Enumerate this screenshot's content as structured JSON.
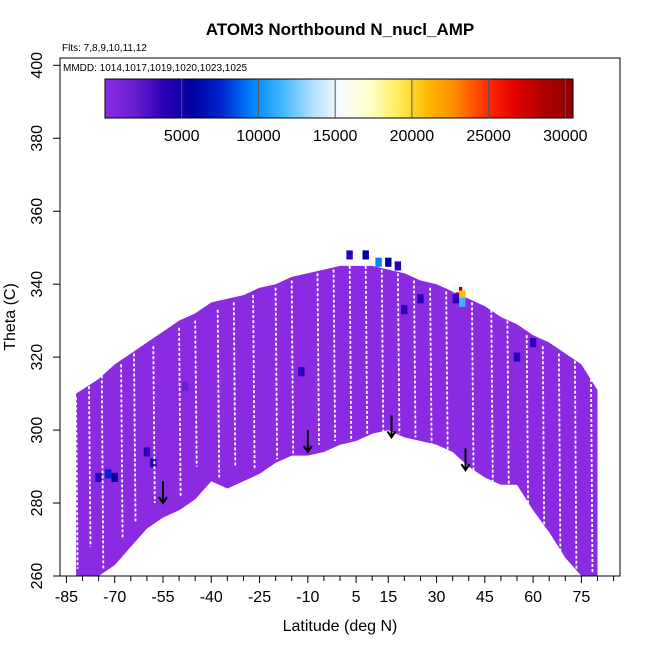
{
  "chart_data": {
    "type": "heatmap",
    "title": "ATOM3 Northbound N_nucl_AMP",
    "subtitle_flights": "Flts: 7,8,9,10,11,12",
    "subtitle_dates": "MMDD: 1014,1017,1019,1020,1023,1025",
    "xlabel": "Latitude (deg N)",
    "ylabel": "Theta (C)",
    "xlim": [
      -87,
      87
    ],
    "ylim": [
      260,
      402
    ],
    "x_ticks": [
      -85,
      -70,
      -55,
      -40,
      -25,
      -10,
      5,
      15,
      30,
      45,
      60,
      75
    ],
    "x_minor_ticks": [
      -80,
      -75,
      -65,
      -60,
      -50,
      -45,
      -35,
      -30,
      -20,
      -15,
      -5,
      0,
      10,
      20,
      25,
      35,
      40,
      50,
      55,
      65,
      70,
      80,
      85
    ],
    "y_ticks": [
      260,
      280,
      300,
      320,
      340,
      360,
      380,
      400
    ],
    "colorbar": {
      "range": [
        0,
        30500
      ],
      "ticks": [
        5000,
        10000,
        15000,
        20000,
        25000,
        30000
      ],
      "colors": [
        "#8a2be2",
        "#6a1fd0",
        "#2c00b8",
        "#0000a0",
        "#0026d4",
        "#0080ff",
        "#38b6ff",
        "#a8dcff",
        "#f5faff",
        "#ffffd0",
        "#ffee60",
        "#ffbb00",
        "#ff8800",
        "#ff3000",
        "#e60000",
        "#b00000",
        "#8b0000"
      ]
    },
    "envelope_top": [
      [
        -82,
        310
      ],
      [
        -75,
        314
      ],
      [
        -70,
        318
      ],
      [
        -65,
        321
      ],
      [
        -60,
        324
      ],
      [
        -55,
        327
      ],
      [
        -50,
        330
      ],
      [
        -45,
        332
      ],
      [
        -40,
        335
      ],
      [
        -35,
        336
      ],
      [
        -30,
        337
      ],
      [
        -25,
        339
      ],
      [
        -20,
        340
      ],
      [
        -15,
        342
      ],
      [
        -10,
        343
      ],
      [
        -5,
        344
      ],
      [
        0,
        345
      ],
      [
        5,
        345
      ],
      [
        10,
        345
      ],
      [
        15,
        344
      ],
      [
        20,
        343
      ],
      [
        25,
        341
      ],
      [
        30,
        340
      ],
      [
        35,
        338
      ],
      [
        40,
        336
      ],
      [
        45,
        334
      ],
      [
        50,
        331
      ],
      [
        55,
        329
      ],
      [
        60,
        326
      ],
      [
        65,
        324
      ],
      [
        70,
        321
      ],
      [
        75,
        318
      ],
      [
        80,
        311
      ]
    ],
    "envelope_bottom": [
      [
        80,
        260
      ],
      [
        75,
        260
      ],
      [
        70,
        265
      ],
      [
        65,
        272
      ],
      [
        60,
        278
      ],
      [
        55,
        285
      ],
      [
        50,
        285
      ],
      [
        45,
        287
      ],
      [
        40,
        290
      ],
      [
        35,
        294
      ],
      [
        30,
        296
      ],
      [
        25,
        297
      ],
      [
        20,
        298
      ],
      [
        15,
        300
      ],
      [
        10,
        299
      ],
      [
        5,
        297
      ],
      [
        0,
        296
      ],
      [
        -5,
        294
      ],
      [
        -10,
        293
      ],
      [
        -15,
        293
      ],
      [
        -20,
        291
      ],
      [
        -25,
        288
      ],
      [
        -30,
        286
      ],
      [
        -35,
        284
      ],
      [
        -40,
        286
      ],
      [
        -45,
        281
      ],
      [
        -50,
        278
      ],
      [
        -55,
        276
      ],
      [
        -60,
        273
      ],
      [
        -65,
        268
      ],
      [
        -70,
        263
      ],
      [
        -75,
        260
      ],
      [
        -80,
        260
      ],
      [
        -82,
        260
      ]
    ],
    "hotspots": [
      {
        "lat": 37,
        "theta": 338,
        "value": 28000
      },
      {
        "lat": 38,
        "theta": 337,
        "value": 20000
      },
      {
        "lat": 36,
        "theta": 339,
        "value": 15000
      },
      {
        "lat": 38,
        "theta": 335,
        "value": 11000
      },
      {
        "lat": 36,
        "theta": 336,
        "value": 4000
      },
      {
        "lat": 12,
        "theta": 346,
        "value": 9000
      },
      {
        "lat": 15,
        "theta": 346,
        "value": 7000
      },
      {
        "lat": 18,
        "theta": 345,
        "value": 4000
      },
      {
        "lat": 8,
        "theta": 348,
        "value": 5500
      },
      {
        "lat": 3,
        "theta": 348,
        "value": 4500
      },
      {
        "lat": -60,
        "theta": 294,
        "value": 5000
      },
      {
        "lat": -58,
        "theta": 291,
        "value": 4500
      },
      {
        "lat": -72,
        "theta": 288,
        "value": 8000
      },
      {
        "lat": -70,
        "theta": 287,
        "value": 5500
      },
      {
        "lat": -75,
        "theta": 287,
        "value": 4000
      },
      {
        "lat": 55,
        "theta": 320,
        "value": 5000
      },
      {
        "lat": 60,
        "theta": 324,
        "value": 4500
      },
      {
        "lat": 20,
        "theta": 333,
        "value": 4500
      },
      {
        "lat": 25,
        "theta": 336,
        "value": 4500
      },
      {
        "lat": -12,
        "theta": 316,
        "value": 3800
      },
      {
        "lat": -48,
        "theta": 312,
        "value": 3500
      }
    ],
    "arrows": [
      {
        "lat": -55,
        "theta_start": 286,
        "theta_end": 280
      },
      {
        "lat": -10,
        "theta_start": 300,
        "theta_end": 294
      },
      {
        "lat": 16,
        "theta_start": 304,
        "theta_end": 298
      },
      {
        "lat": 39,
        "theta_start": 295,
        "theta_end": 289
      }
    ],
    "flight_tracks": [
      {
        "lat": -82,
        "theta_top": 309,
        "theta_bottom": 262
      },
      {
        "lat": -78,
        "theta_top": 312,
        "theta_bottom": 268
      },
      {
        "lat": -74,
        "theta_top": 315,
        "theta_bottom": 262
      },
      {
        "lat": -68,
        "theta_top": 318,
        "theta_bottom": 270
      },
      {
        "lat": -64,
        "theta_top": 321,
        "theta_bottom": 275
      },
      {
        "lat": -58,
        "theta_top": 323,
        "theta_bottom": 280
      },
      {
        "lat": -50,
        "theta_top": 328,
        "theta_bottom": 282
      },
      {
        "lat": -45,
        "theta_top": 330,
        "theta_bottom": 290
      },
      {
        "lat": -38,
        "theta_top": 333,
        "theta_bottom": 287
      },
      {
        "lat": -33,
        "theta_top": 335,
        "theta_bottom": 290
      },
      {
        "lat": -27,
        "theta_top": 337,
        "theta_bottom": 289
      },
      {
        "lat": -20,
        "theta_top": 339,
        "theta_bottom": 292
      },
      {
        "lat": -15,
        "theta_top": 341,
        "theta_bottom": 293
      },
      {
        "lat": -7,
        "theta_top": 343,
        "theta_bottom": 296
      },
      {
        "lat": -2,
        "theta_top": 344,
        "theta_bottom": 297
      },
      {
        "lat": 3,
        "theta_top": 345,
        "theta_bottom": 297
      },
      {
        "lat": 8,
        "theta_top": 345,
        "theta_bottom": 299
      },
      {
        "lat": 13,
        "theta_top": 344,
        "theta_bottom": 298
      },
      {
        "lat": 18,
        "theta_top": 343,
        "theta_bottom": 299
      },
      {
        "lat": 23,
        "theta_top": 341,
        "theta_bottom": 298
      },
      {
        "lat": 28,
        "theta_top": 339,
        "theta_bottom": 296
      },
      {
        "lat": 33,
        "theta_top": 338,
        "theta_bottom": 293
      },
      {
        "lat": 41,
        "theta_top": 335,
        "theta_bottom": 289
      },
      {
        "lat": 47,
        "theta_top": 333,
        "theta_bottom": 286
      },
      {
        "lat": 52,
        "theta_top": 330,
        "theta_bottom": 280
      },
      {
        "lat": 58,
        "theta_top": 326,
        "theta_bottom": 274
      },
      {
        "lat": 63,
        "theta_top": 323,
        "theta_bottom": 268
      },
      {
        "lat": 68,
        "theta_top": 321,
        "theta_bottom": 265
      },
      {
        "lat": 73,
        "theta_top": 319,
        "theta_bottom": 262
      },
      {
        "lat": 78,
        "theta_top": 314,
        "theta_bottom": 261
      }
    ]
  }
}
